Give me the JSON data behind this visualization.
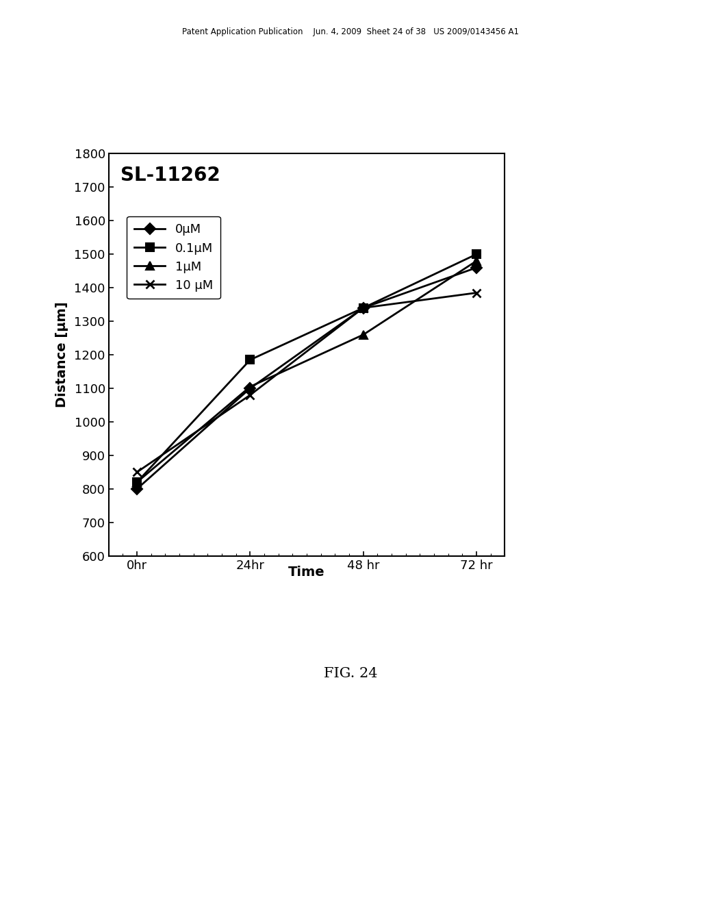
{
  "title": "SL-11262",
  "xlabel": "Time",
  "ylabel": "Distance [μm]",
  "x_positions": [
    0,
    1,
    2,
    3
  ],
  "x_labels": [
    "0hr",
    "24hr",
    "48 hr",
    "72 hr"
  ],
  "series": [
    {
      "label": "0μM",
      "values": [
        800,
        1100,
        1340,
        1460
      ],
      "marker": "D",
      "color": "#000000",
      "markersize": 8,
      "linewidth": 2.0
    },
    {
      "label": "0.1μM",
      "values": [
        820,
        1185,
        1340,
        1500
      ],
      "marker": "s",
      "color": "#000000",
      "markersize": 8,
      "linewidth": 2.0
    },
    {
      "label": "1μM",
      "values": [
        820,
        1105,
        1260,
        1480
      ],
      "marker": "^",
      "color": "#000000",
      "markersize": 8,
      "linewidth": 2.0
    },
    {
      "label": "10 μM",
      "values": [
        850,
        1080,
        1340,
        1385
      ],
      "marker": "x",
      "color": "#000000",
      "markersize": 8,
      "linewidth": 2.0,
      "markeredgewidth": 2.0
    }
  ],
  "ylim": [
    600,
    1800
  ],
  "yticks": [
    600,
    700,
    800,
    900,
    1000,
    1100,
    1200,
    1300,
    1400,
    1500,
    1600,
    1700,
    1800
  ],
  "header_text": "Patent Application Publication    Jun. 4, 2009  Sheet 24 of 38   US 2009/0143456 A1",
  "fig_label": "FIG. 24",
  "background_color": "#ffffff",
  "plot_bg_color": "#ffffff",
  "title_fontsize": 20,
  "label_fontsize": 14,
  "tick_fontsize": 13,
  "legend_fontsize": 13
}
